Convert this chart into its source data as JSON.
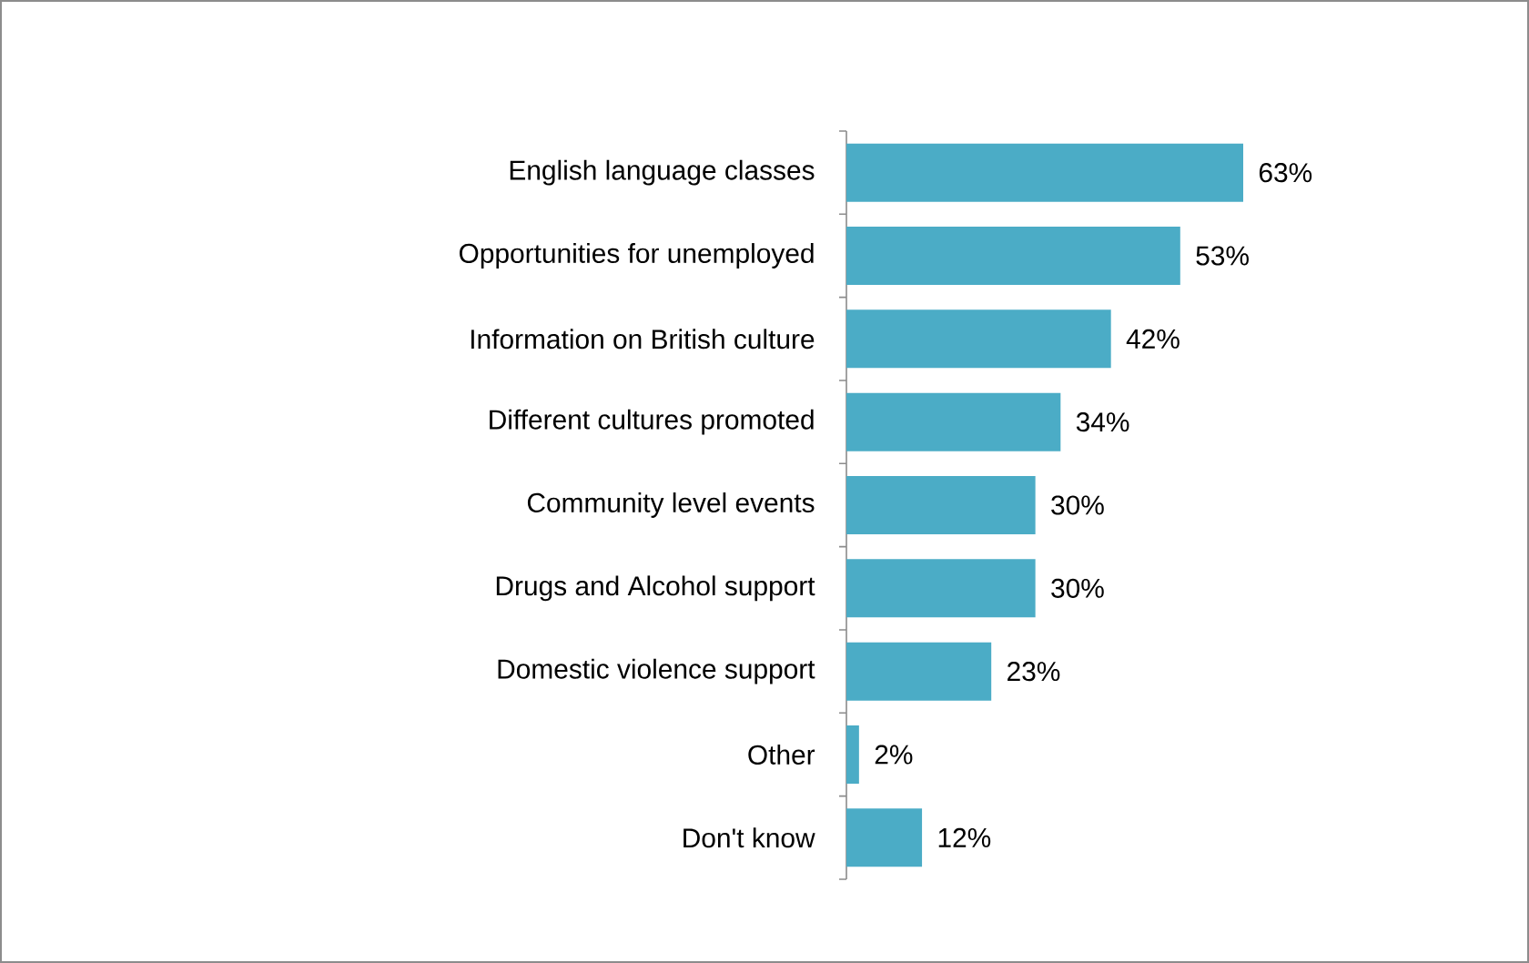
{
  "chart_data": {
    "type": "bar",
    "orientation": "horizontal",
    "categories": [
      "English language classes",
      "Opportunities for unemployed",
      "Information on British culture",
      "Different cultures promoted",
      "Community level events",
      "Drugs and Alcohol support",
      "Domestic violence support",
      "Other",
      "Don't know"
    ],
    "values": [
      63,
      53,
      42,
      34,
      30,
      30,
      23,
      2,
      12
    ],
    "value_labels": [
      "63%",
      "53%",
      "42%",
      "34%",
      "30%",
      "30%",
      "23%",
      "2%",
      "12%"
    ],
    "color": "#4bacc6"
  }
}
